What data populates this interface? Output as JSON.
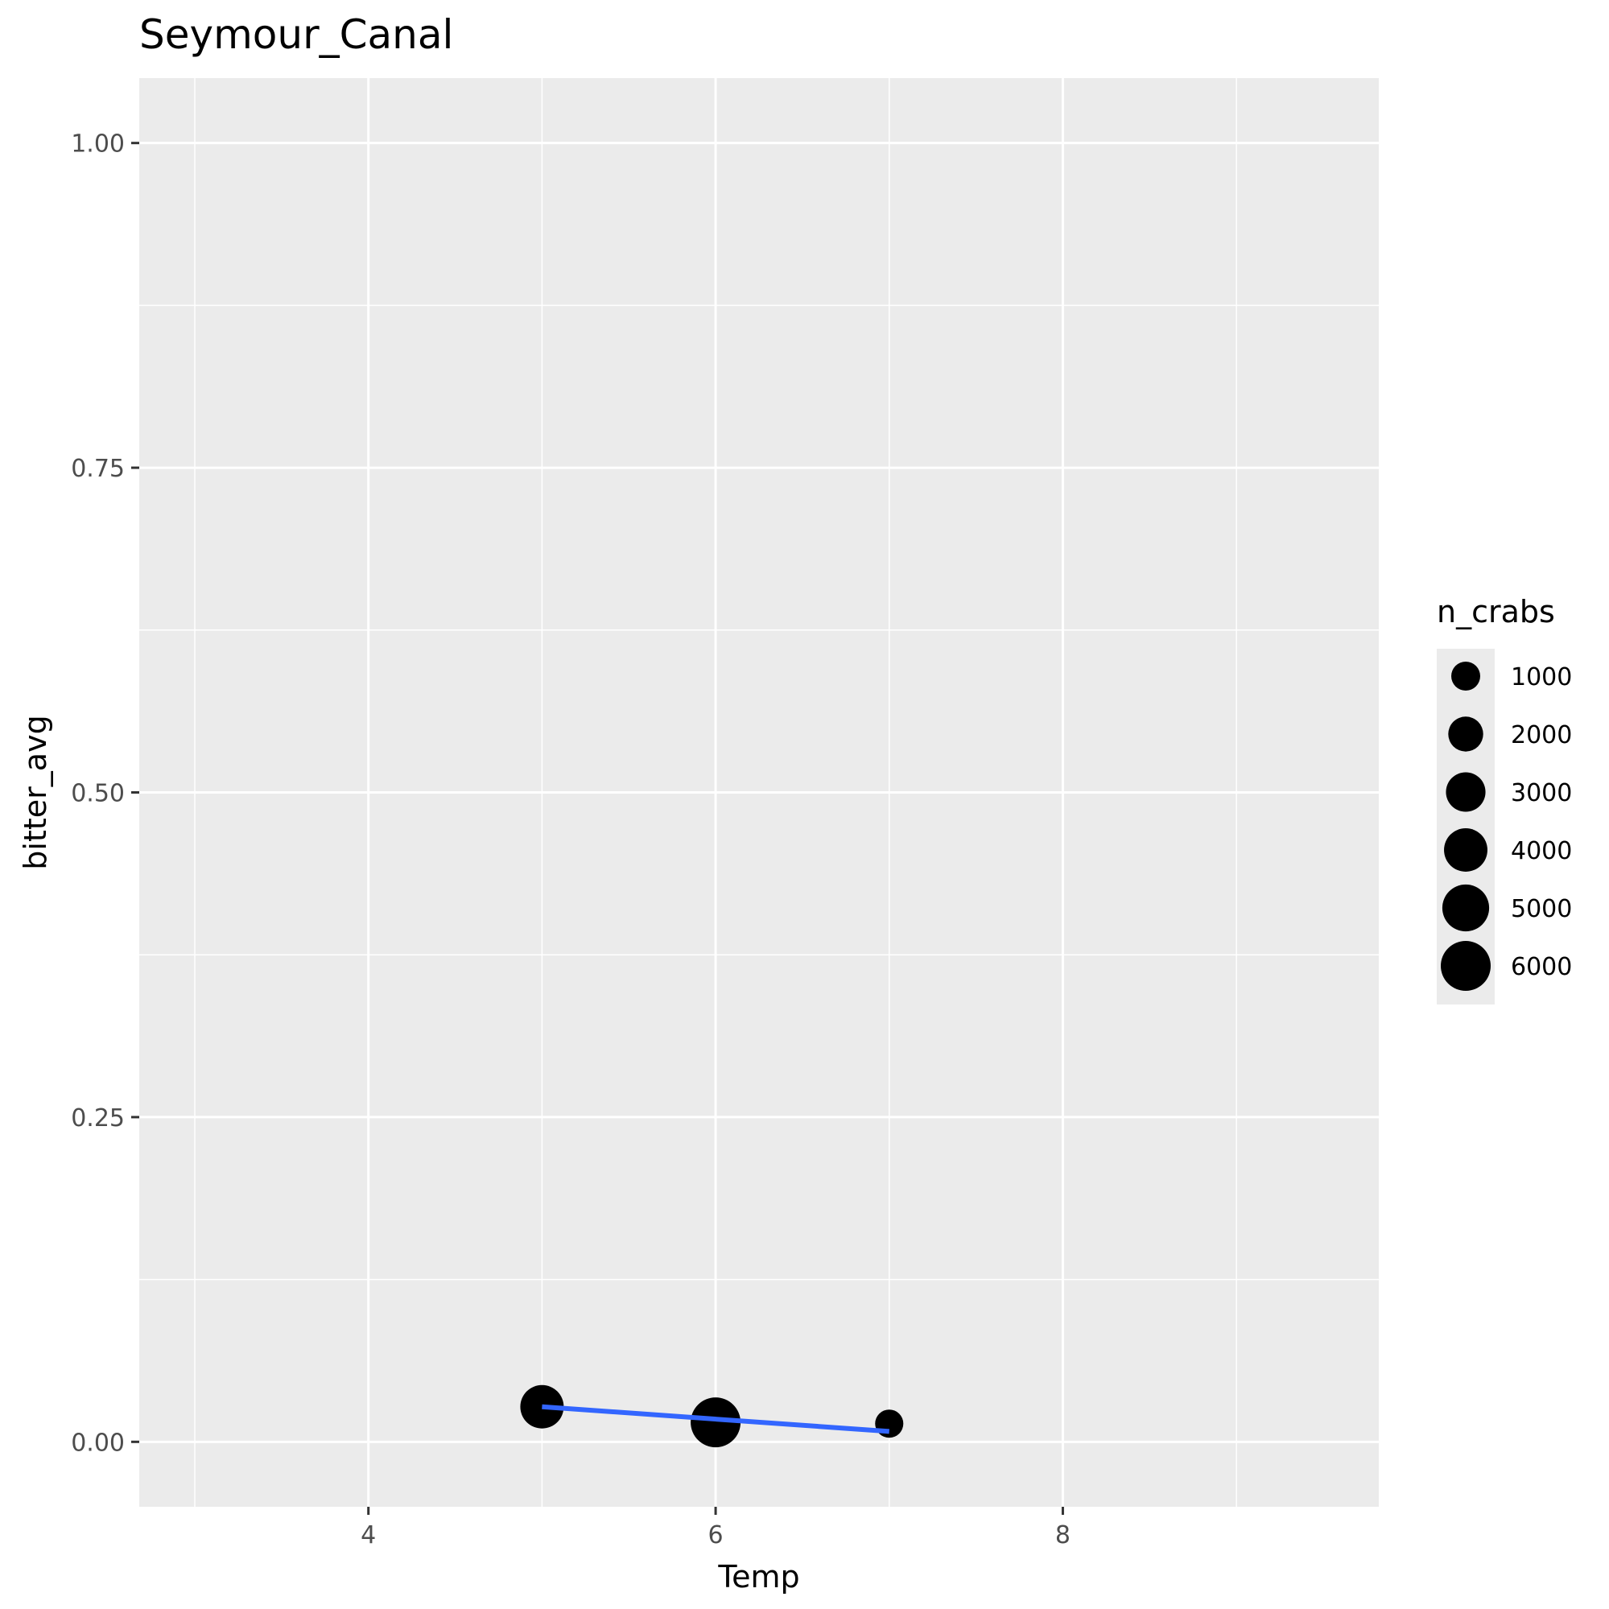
{
  "chart_data": {
    "type": "scatter",
    "title": "Seymour_Canal",
    "xlabel": "Temp",
    "ylabel": "bitter_avg",
    "xlim": [
      2.68,
      9.82
    ],
    "ylim": [
      -0.05,
      1.05
    ],
    "x_ticks": [
      4,
      6,
      8
    ],
    "x_tick_labels": [
      "4",
      "6",
      "8"
    ],
    "y_ticks": [
      0,
      0.25,
      0.5,
      0.75,
      1
    ],
    "y_tick_labels": [
      "0.00",
      "0.25",
      "0.50",
      "0.75",
      "1.00"
    ],
    "grid": true,
    "points": [
      {
        "x": 5,
        "y": 0.027,
        "n_crabs": 4000
      },
      {
        "x": 6,
        "y": 0.015,
        "n_crabs": 6000
      },
      {
        "x": 7,
        "y": 0.014,
        "n_crabs": 900
      }
    ],
    "trend_line": {
      "color": "#3366FF",
      "x": [
        5,
        7
      ],
      "y": [
        0.027,
        0.008
      ]
    },
    "legend": {
      "title": "n_crabs",
      "position": "right",
      "entries": [
        {
          "label": "1000",
          "value": 1000
        },
        {
          "label": "2000",
          "value": 2000
        },
        {
          "label": "3000",
          "value": 3000
        },
        {
          "label": "4000",
          "value": 4000
        },
        {
          "label": "5000",
          "value": 5000
        },
        {
          "label": "6000",
          "value": 6000
        }
      ]
    },
    "colors": {
      "panel": "#EBEBEB",
      "grid": "#FFFFFF",
      "point": "#000000",
      "line": "#3366FF"
    }
  }
}
